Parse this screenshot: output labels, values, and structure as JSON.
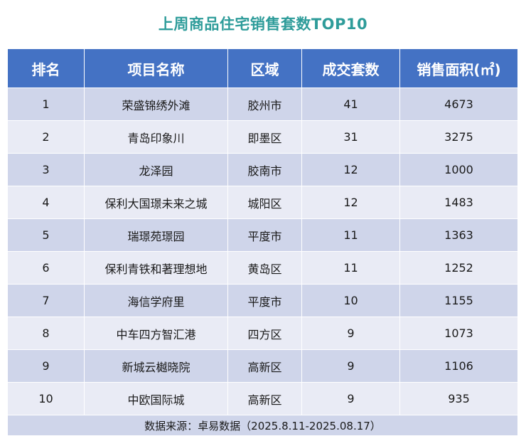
{
  "title": "上周商品住宅销售套数TOP10",
  "headers": [
    "排名",
    "项目名称",
    "区域",
    "成交套数",
    "销售面积(㎡)"
  ],
  "rows": [
    {
      "rank": "1",
      "name": "荣盛锦绣外滩",
      "district": "胶州市",
      "units": "41",
      "area": "4673"
    },
    {
      "rank": "2",
      "name": "青岛印象川",
      "district": "即墨区",
      "units": "31",
      "area": "3275"
    },
    {
      "rank": "3",
      "name": "龙泽园",
      "district": "胶南市",
      "units": "12",
      "area": "1000"
    },
    {
      "rank": "4",
      "name": "保利大国璟未来之城",
      "district": "城阳区",
      "units": "12",
      "area": "1483"
    },
    {
      "rank": "5",
      "name": "瑞璟苑璟园",
      "district": "平度市",
      "units": "11",
      "area": "1363"
    },
    {
      "rank": "6",
      "name": "保利青铁和著理想地",
      "district": "黄岛区",
      "units": "11",
      "area": "1252"
    },
    {
      "rank": "7",
      "name": "海信学府里",
      "district": "平度市",
      "units": "10",
      "area": "1155"
    },
    {
      "rank": "8",
      "name": "中车四方智汇港",
      "district": "四方区",
      "units": "9",
      "area": "1073"
    },
    {
      "rank": "9",
      "name": "新城云樾晓院",
      "district": "高新区",
      "units": "9",
      "area": "1106"
    },
    {
      "rank": "10",
      "name": "中欧国际城",
      "district": "高新区",
      "units": "9",
      "area": "935"
    }
  ],
  "footer": "数据来源：卓易数据（2025.8.11-2025.08.17）",
  "colors": {
    "title": "#2e9c9a",
    "header_bg": "#4472c4",
    "row_dark": "#cfd5ea",
    "row_light": "#e9ebf5"
  }
}
